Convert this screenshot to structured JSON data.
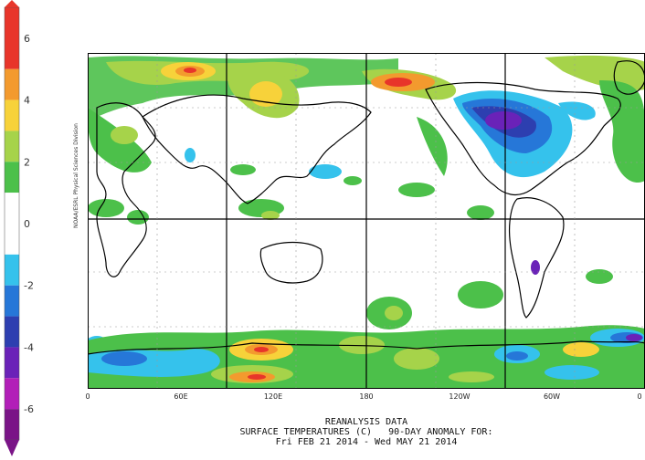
{
  "colorbar": {
    "ticks": [
      "6",
      "4",
      "2",
      "0",
      "-2",
      "-4",
      "-6"
    ],
    "tick_values": [
      6,
      4,
      2,
      0,
      -2,
      -4,
      -6
    ],
    "range": [
      -7,
      7
    ],
    "bands": [
      {
        "from": 5,
        "to": 7,
        "color": "#e8352a"
      },
      {
        "from": 4,
        "to": 5,
        "color": "#f39a2e"
      },
      {
        "from": 3,
        "to": 4,
        "color": "#f7d23a"
      },
      {
        "from": 2,
        "to": 3,
        "color": "#a6d34a"
      },
      {
        "from": 1,
        "to": 2,
        "color": "#4cc04a"
      },
      {
        "from": -1,
        "to": 1,
        "color": "#ffffff"
      },
      {
        "from": -2,
        "to": -1,
        "color": "#35c2ec"
      },
      {
        "from": -3,
        "to": -2,
        "color": "#2677d8"
      },
      {
        "from": -4,
        "to": -3,
        "color": "#2d3fb0"
      },
      {
        "from": -5,
        "to": -4,
        "color": "#6a22b8"
      },
      {
        "from": -6,
        "to": -5,
        "color": "#b21fb8"
      },
      {
        "from": -7,
        "to": -6,
        "color": "#7a1487"
      }
    ]
  },
  "credit": "NOAA/ESRL Physical Sciences Division",
  "map": {
    "lon_labels": [
      "0",
      "60E",
      "120E",
      "180",
      "120W",
      "60W",
      "0"
    ],
    "land_color": "#000000",
    "grid_color": "#000000"
  },
  "footer": {
    "line1": "REANALYSIS DATA",
    "line2": "SURFACE TEMPERATURES (C)   90-DAY ANOMALY FOR:",
    "line3": "Fri FEB 21 2014 - Wed MAY 21 2014"
  }
}
